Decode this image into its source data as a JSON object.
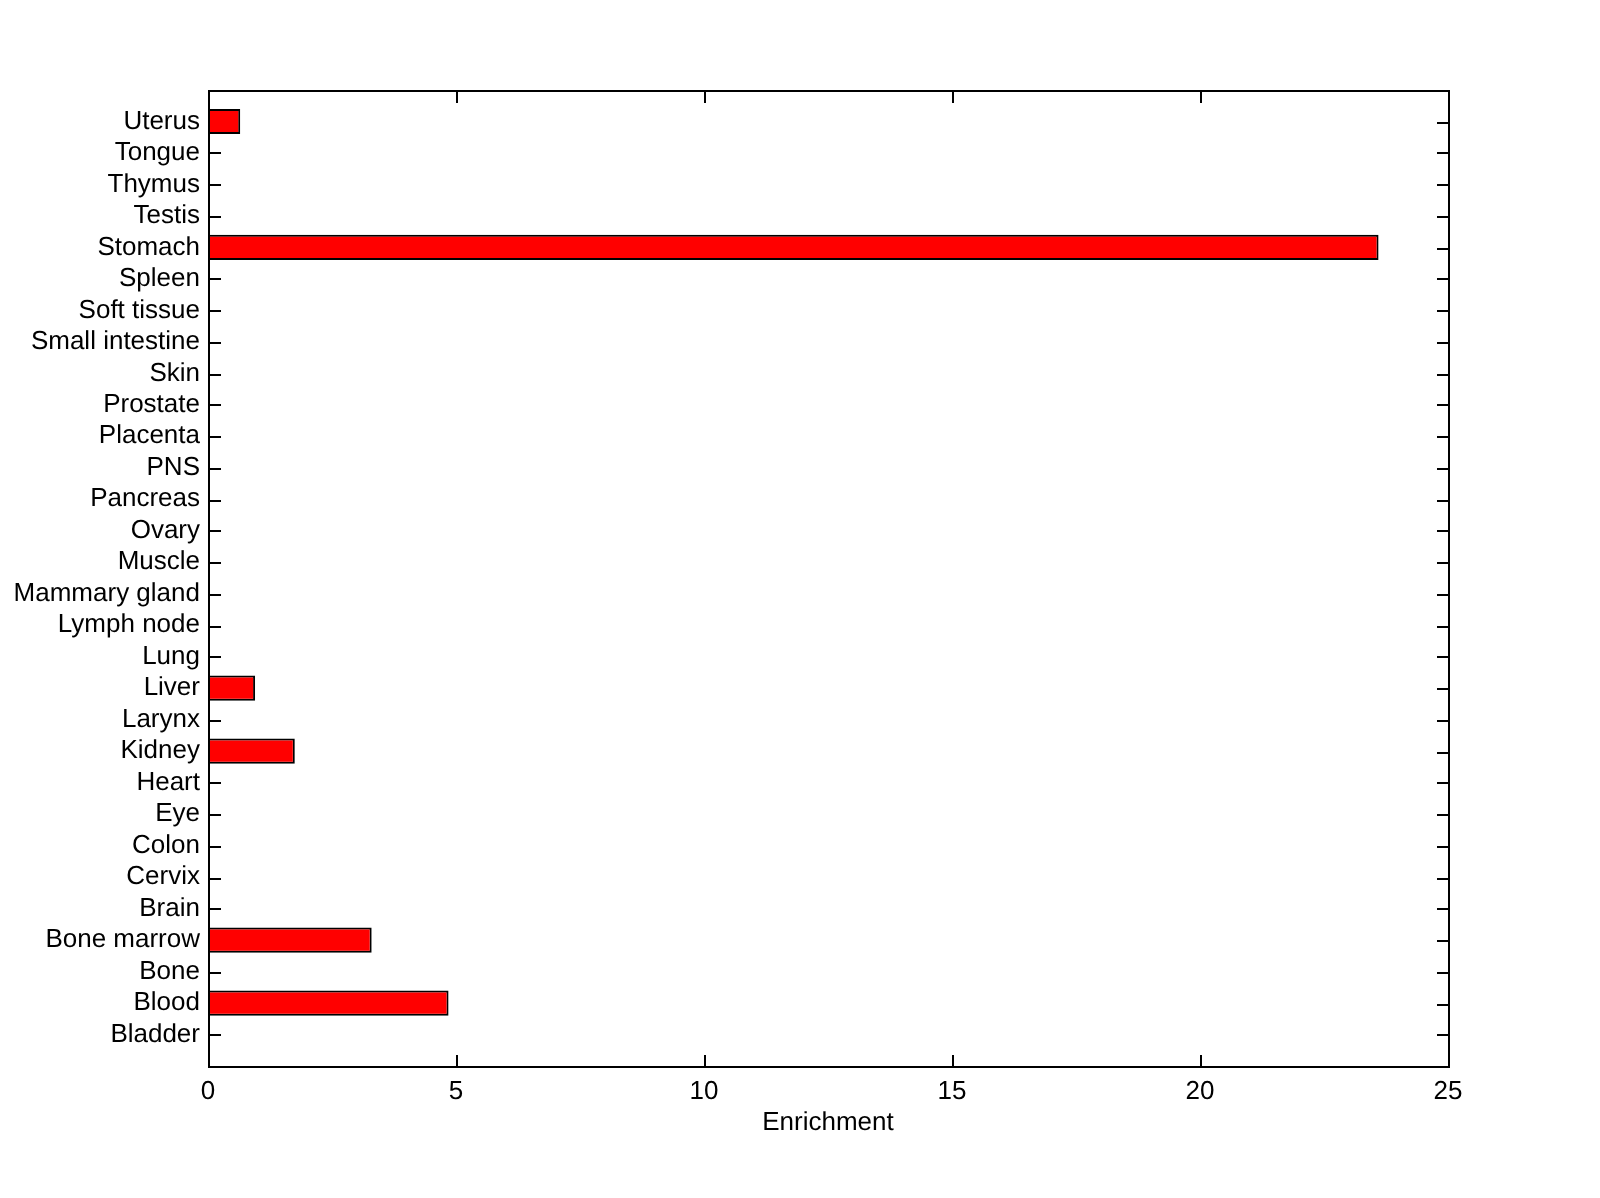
{
  "chart_data": {
    "type": "bar",
    "orientation": "horizontal",
    "xlabel": "Enrichment",
    "categories": [
      "Uterus",
      "Tongue",
      "Thymus",
      "Testis",
      "Stomach",
      "Spleen",
      "Soft tissue",
      "Small intestine",
      "Skin",
      "Prostate",
      "Placenta",
      "PNS",
      "Pancreas",
      "Ovary",
      "Muscle",
      "Mammary gland",
      "Lymph node",
      "Lung",
      "Liver",
      "Larynx",
      "Kidney",
      "Heart",
      "Eye",
      "Colon",
      "Cervix",
      "Brain",
      "Bone marrow",
      "Bone",
      "Blood",
      "Bladder"
    ],
    "values": [
      0.65,
      0,
      0,
      0,
      23.6,
      0,
      0,
      0,
      0,
      0,
      0,
      0,
      0,
      0,
      0,
      0,
      0,
      0,
      0.95,
      0,
      1.75,
      0,
      0,
      0,
      0,
      0,
      3.3,
      0,
      4.85,
      0
    ],
    "color": "#ff0000",
    "xlim": [
      0,
      25
    ],
    "xticks": [
      0,
      5,
      10,
      15,
      20,
      25
    ]
  }
}
